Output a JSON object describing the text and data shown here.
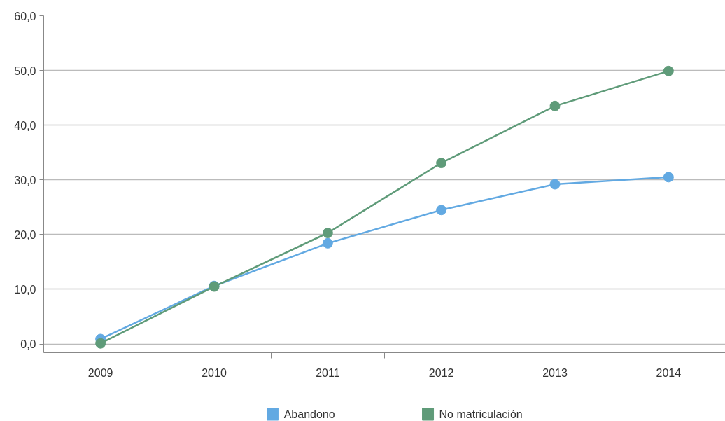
{
  "chart_data": {
    "type": "line",
    "categories": [
      "2009",
      "2010",
      "2011",
      "2012",
      "2013",
      "2014"
    ],
    "series": [
      {
        "name": "Abandono",
        "color": "#62a9e2",
        "values": [
          0.9,
          10.6,
          18.4,
          24.5,
          29.2,
          30.5
        ]
      },
      {
        "name": "No matriculación",
        "color": "#5f9b79",
        "values": [
          0.1,
          10.5,
          20.3,
          33.1,
          43.5,
          49.9
        ]
      }
    ],
    "ylim": [
      -1.6,
      60
    ],
    "yticks": [
      {
        "value": 0,
        "label": "0,0"
      },
      {
        "value": 10,
        "label": "10,0"
      },
      {
        "value": 20,
        "label": "20,0"
      },
      {
        "value": 30,
        "label": "30,0"
      },
      {
        "value": 40,
        "label": "40,0"
      },
      {
        "value": 50,
        "label": "50,0"
      },
      {
        "value": 60,
        "label": "60,0"
      }
    ],
    "grid": "y",
    "legend": "bottom",
    "marker": "circle",
    "line_style": "solid"
  }
}
